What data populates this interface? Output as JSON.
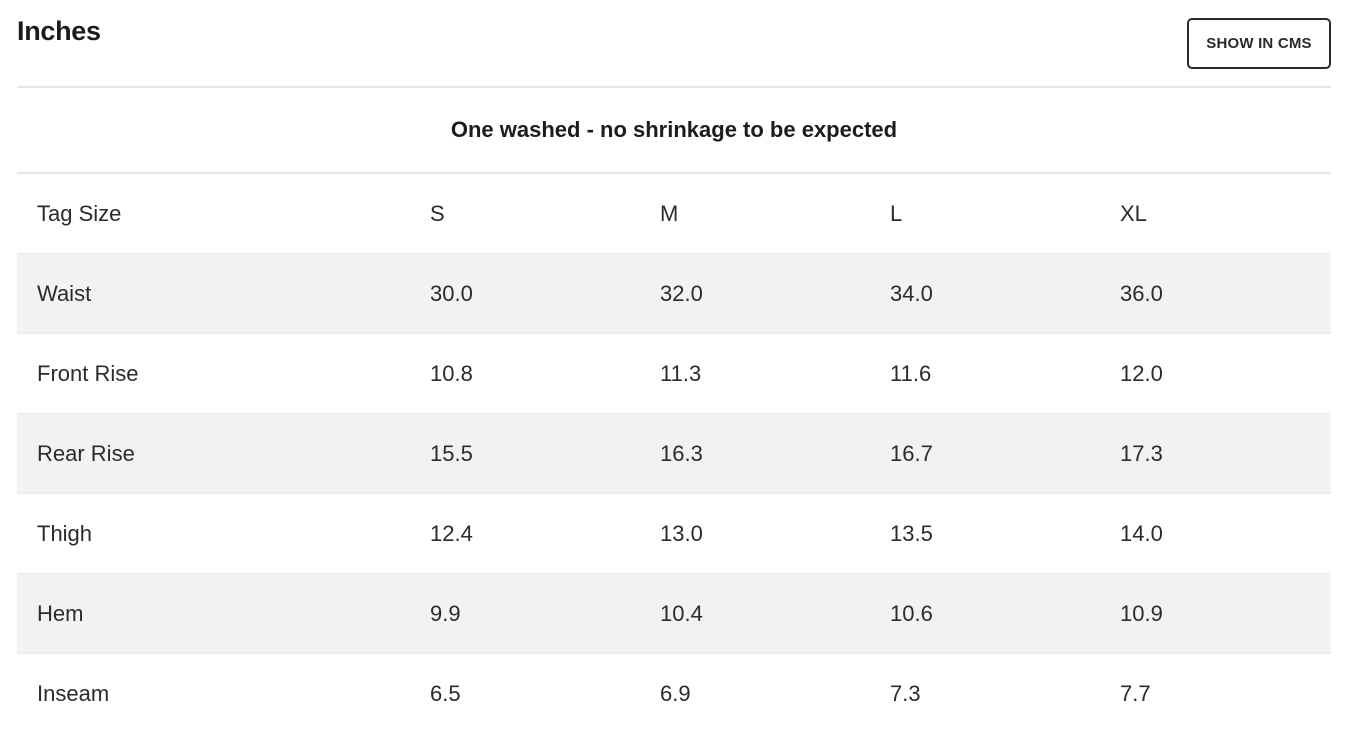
{
  "header": {
    "title": "Inches",
    "button_label": "SHOW IN CMS"
  },
  "table": {
    "caption": "One washed - no shrinkage to be expected",
    "columns": [
      "Tag Size",
      "S",
      "M",
      "L",
      "XL"
    ],
    "rows": [
      {
        "label": "Waist",
        "values": [
          "30.0",
          "32.0",
          "34.0",
          "36.0"
        ]
      },
      {
        "label": "Front Rise",
        "values": [
          "10.8",
          "11.3",
          "11.6",
          "12.0"
        ]
      },
      {
        "label": "Rear Rise",
        "values": [
          "15.5",
          "16.3",
          "16.7",
          "17.3"
        ]
      },
      {
        "label": "Thigh",
        "values": [
          "12.4",
          "13.0",
          "13.5",
          "14.0"
        ]
      },
      {
        "label": "Hem",
        "values": [
          "9.9",
          "10.4",
          "10.6",
          "10.9"
        ]
      },
      {
        "label": "Inseam",
        "values": [
          "6.5",
          "6.9",
          "7.3",
          "7.7"
        ]
      }
    ]
  },
  "colors": {
    "stripe": "#f2f2f2",
    "divider": "#e6e6e6",
    "text": "#2b2b2b",
    "button_border": "#2a2a2a"
  }
}
